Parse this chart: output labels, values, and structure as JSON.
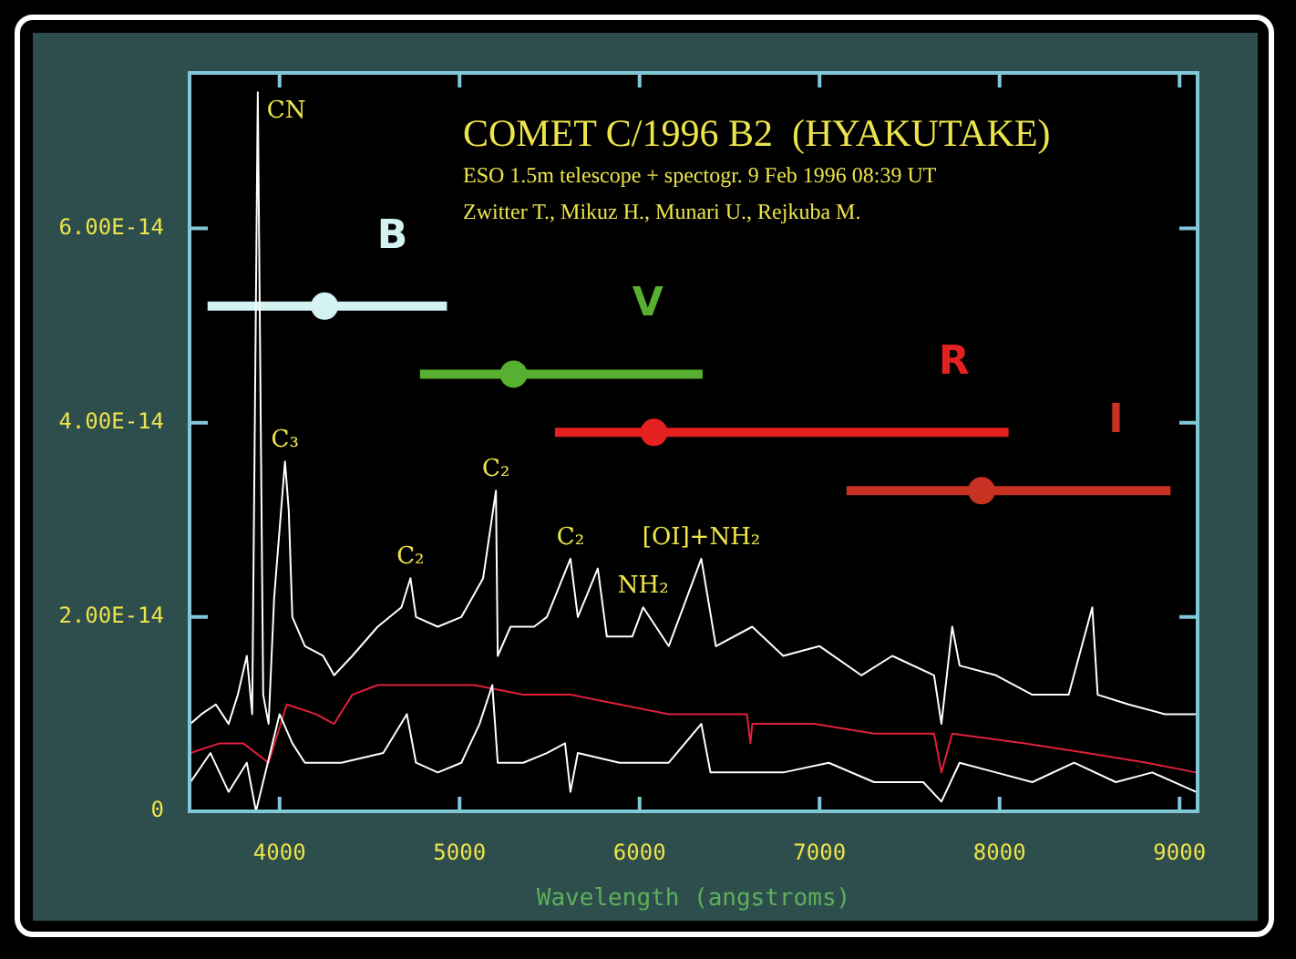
{
  "chart_data": {
    "type": "line",
    "title": "COMET C/1996 B2  (HYAKUTAKE)",
    "subtitle": "ESO 1.5m telescope + spectogr. 9 Feb 1996 08:39 UT",
    "xlabel": "Wavelength (angstroms)",
    "annotations": [
      "Zwitter T., Mikuz H., Munari U., Rejkuba M.",
      {
        "text": "CN",
        "x": 3879,
        "y": 7.4e-14
      },
      {
        "text": "C₃",
        "x": 4030,
        "y": 3.6e-14
      },
      {
        "text": "C₂",
        "x": 4727,
        "y": 2.4e-14
      },
      {
        "text": "C₂",
        "x": 5202,
        "y": 3.3e-14
      },
      {
        "text": "C₂",
        "x": 5616,
        "y": 2.6e-14
      },
      {
        "text": "NH₂",
        "x": 6020,
        "y": 2.1e-14
      },
      {
        "text": "[OI]+NH₂",
        "x": 6343,
        "y": 2.6e-14
      }
    ],
    "xlim": [
      3500,
      9100
    ],
    "xticks": [
      4000,
      5000,
      6000,
      7000,
      8000,
      9000
    ],
    "ylim": [
      0,
      7.6e-14
    ],
    "yticks": [
      0,
      {
        "value": 2e-14,
        "label": "2.00E-14"
      },
      {
        "value": 4e-14,
        "label": "4.00E-14"
      },
      {
        "value": 6e-14,
        "label": "6.00E-14"
      }
    ],
    "grid": false,
    "series": [
      {
        "type": "line",
        "color": "#ffffff",
        "x": [
          3505,
          3566,
          3646,
          3717,
          3768,
          3818,
          3848,
          3879,
          3909,
          3939,
          3970,
          4030,
          4051,
          4071,
          4141,
          4242,
          4303,
          4404,
          4545,
          4677,
          4727,
          4758,
          4879,
          5010,
          5131,
          5202,
          5212,
          5283,
          5414,
          5485,
          5616,
          5657,
          5768,
          5818,
          5960,
          6020,
          6162,
          6343,
          6424,
          6626,
          6798,
          7000,
          7232,
          7404,
          7636,
          7677,
          7737,
          7778,
          7980,
          8182,
          8384,
          8515,
          8545,
          8717,
          8919,
          9091
        ],
        "values": [
          9e-15,
          1e-14,
          1.1e-14,
          9e-15,
          1.2e-14,
          1.6e-14,
          1e-14,
          7.4e-14,
          1.2e-14,
          9e-15,
          2.2e-14,
          3.6e-14,
          3.1e-14,
          2e-14,
          1.7e-14,
          1.6e-14,
          1.4e-14,
          1.6e-14,
          1.9e-14,
          2.1e-14,
          2.4e-14,
          2e-14,
          1.9e-14,
          2e-14,
          2.4e-14,
          3.3e-14,
          1.6e-14,
          1.9e-14,
          1.9e-14,
          2e-14,
          2.6e-14,
          2e-14,
          2.5e-14,
          1.8e-14,
          1.8e-14,
          2.1e-14,
          1.7e-14,
          2.6e-14,
          1.7e-14,
          1.9e-14,
          1.6e-14,
          1.7e-14,
          1.4e-14,
          1.6e-14,
          1.4e-14,
          9e-15,
          1.9e-14,
          1.5e-14,
          1.4e-14,
          1.2e-14,
          1.2e-14,
          2.1e-14,
          1.2e-14,
          1.1e-14,
          1e-14,
          1e-14
        ]
      },
      {
        "type": "line",
        "color": "#ffffff",
        "x": [
          3505,
          3616,
          3717,
          3818,
          3869,
          4000,
          4071,
          4141,
          4343,
          4576,
          4707,
          4758,
          4879,
          5010,
          5111,
          5182,
          5212,
          5354,
          5485,
          5586,
          5616,
          5657,
          5889,
          6162,
          6343,
          6394,
          6798,
          7051,
          7303,
          7576,
          7677,
          7778,
          7980,
          8182,
          8414,
          8646,
          8848,
          9091
        ],
        "values": [
          3e-15,
          6e-15,
          2e-15,
          5e-15,
          0,
          1e-14,
          7e-15,
          5e-15,
          5e-15,
          6e-15,
          1e-14,
          5e-15,
          4e-15,
          5e-15,
          9e-15,
          1.3e-14,
          5e-15,
          5e-15,
          6e-15,
          7e-15,
          2e-15,
          6e-15,
          5e-15,
          5e-15,
          9e-15,
          4e-15,
          4e-15,
          5e-15,
          3e-15,
          3e-15,
          1e-15,
          5e-15,
          4e-15,
          3e-15,
          5e-15,
          3e-15,
          4e-15,
          2e-15
        ]
      },
      {
        "type": "line",
        "color": "#e0203c",
        "x": [
          3505,
          3667,
          3798,
          3939,
          4040,
          4202,
          4303,
          4404,
          4545,
          4808,
          5081,
          5354,
          5616,
          5889,
          6162,
          6424,
          6596,
          6616,
          6626,
          6970,
          7303,
          7636,
          7677,
          7737,
          8141,
          8485,
          8818,
          9091
        ],
        "values": [
          6e-15,
          7e-15,
          7e-15,
          5e-15,
          1.1e-14,
          1e-14,
          9e-15,
          1.2e-14,
          1.3e-14,
          1.3e-14,
          1.3e-14,
          1.2e-14,
          1.2e-14,
          1.1e-14,
          1e-14,
          1e-14,
          1e-14,
          7e-15,
          9e-15,
          9e-15,
          8e-15,
          8e-15,
          4e-15,
          8e-15,
          7e-15,
          6e-15,
          5e-15,
          4e-15
        ]
      },
      {
        "type": "scatter",
        "name": "B",
        "color": "#d4f2f2",
        "marker": "circle",
        "x": [
          4250
        ],
        "values": [
          5.2e-14
        ],
        "xerrors": [
          [
            3600,
            4930
          ]
        ]
      },
      {
        "type": "scatter",
        "name": "V",
        "color": "#58b030",
        "marker": "circle",
        "x": [
          5300
        ],
        "values": [
          4.5e-14
        ],
        "xerrors": [
          [
            4780,
            6350
          ]
        ]
      },
      {
        "type": "scatter",
        "name": "R",
        "color": "#e42020",
        "marker": "circle",
        "x": [
          6080
        ],
        "values": [
          3.9e-14
        ],
        "xerrors": [
          [
            5530,
            8050
          ]
        ]
      },
      {
        "type": "scatter",
        "name": "I",
        "color": "#c83222",
        "marker": "circle",
        "x": [
          7900
        ],
        "values": [
          3.3e-14
        ],
        "xerrors": [
          [
            7150,
            8950
          ]
        ]
      }
    ]
  }
}
